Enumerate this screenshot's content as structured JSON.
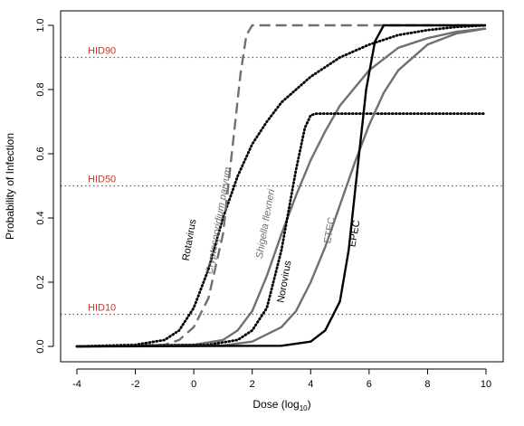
{
  "chart_data": {
    "type": "line",
    "xlabel": "Dose (log",
    "xlabel_sub": "10",
    "xlabel_close": ")",
    "ylabel": "Probability of Infection",
    "xlim": [
      -4,
      10
    ],
    "ylim": [
      0,
      1
    ],
    "x_ticks": [
      -4,
      -2,
      0,
      2,
      4,
      6,
      8,
      10
    ],
    "y_ticks": [
      0.0,
      0.2,
      0.4,
      0.6,
      0.8,
      1.0
    ],
    "y_tick_labels": [
      "0.0",
      "0.2",
      "0.4",
      "0.6",
      "0.8",
      "1.0"
    ],
    "grid": false,
    "reference_lines": [
      {
        "label": "HID90",
        "y": 0.9,
        "color": "#c0392b"
      },
      {
        "label": "HID50",
        "y": 0.5,
        "color": "#c0392b"
      },
      {
        "label": "HID10",
        "y": 0.1,
        "color": "#c0392b"
      }
    ],
    "series": [
      {
        "name": "Rotavirus",
        "color": "#000000",
        "style": "dotted",
        "width": 2.4,
        "x": [
          -4,
          -2,
          -1,
          -0.5,
          0,
          0.5,
          1,
          1.5,
          2,
          2.5,
          3,
          4,
          5,
          6,
          7,
          8,
          9,
          10
        ],
        "y": [
          0.0,
          0.005,
          0.02,
          0.05,
          0.12,
          0.24,
          0.4,
          0.53,
          0.63,
          0.7,
          0.76,
          0.84,
          0.9,
          0.94,
          0.97,
          0.985,
          0.995,
          1.0
        ]
      },
      {
        "name": "Cryptosporidium parvum",
        "color": "#707070",
        "style": "dashed",
        "width": 2.4,
        "x": [
          -4,
          -1,
          -0.5,
          0,
          0.5,
          1,
          1.3,
          1.6,
          1.8,
          2,
          3,
          6,
          10
        ],
        "y": [
          0.0,
          0.005,
          0.02,
          0.06,
          0.15,
          0.35,
          0.6,
          0.85,
          0.97,
          1.0,
          1.0,
          1.0,
          1.0
        ]
      },
      {
        "name": "Shigella flexneri",
        "color": "#707070",
        "style": "solid",
        "width": 2.4,
        "x": [
          -4,
          0,
          1,
          1.5,
          2,
          2.5,
          3,
          3.5,
          4,
          4.5,
          5,
          6,
          7,
          8,
          9,
          10
        ],
        "y": [
          0.0,
          0.005,
          0.02,
          0.05,
          0.11,
          0.22,
          0.35,
          0.47,
          0.58,
          0.67,
          0.75,
          0.86,
          0.93,
          0.96,
          0.98,
          0.99
        ]
      },
      {
        "name": "Norovirus",
        "color": "#000000",
        "style": "dotted",
        "width": 2.4,
        "x": [
          -4,
          0.5,
          1.5,
          2,
          2.5,
          3,
          3.5,
          3.8,
          4,
          4.2,
          5,
          6,
          7,
          8,
          9,
          10
        ],
        "y": [
          0.0,
          0.005,
          0.02,
          0.05,
          0.12,
          0.3,
          0.55,
          0.68,
          0.72,
          0.725,
          0.725,
          0.725,
          0.725,
          0.725,
          0.725,
          0.725
        ]
      },
      {
        "name": "ETEC",
        "color": "#707070",
        "style": "solid",
        "width": 2.4,
        "x": [
          -4,
          1,
          2,
          3,
          3.5,
          4,
          4.5,
          5,
          5.5,
          6,
          6.5,
          7,
          8,
          9,
          10
        ],
        "y": [
          0.0,
          0.003,
          0.015,
          0.06,
          0.11,
          0.2,
          0.31,
          0.44,
          0.57,
          0.69,
          0.79,
          0.86,
          0.94,
          0.975,
          0.99
        ]
      },
      {
        "name": "EPEC",
        "color": "#000000",
        "style": "solid",
        "width": 2.4,
        "x": [
          -4,
          3,
          4,
          4.5,
          5,
          5.3,
          5.6,
          5.9,
          6.2,
          6.5,
          7,
          8,
          10
        ],
        "y": [
          0.0,
          0.002,
          0.015,
          0.05,
          0.14,
          0.3,
          0.55,
          0.8,
          0.95,
          1.0,
          1.0,
          1.0,
          1.0
        ]
      }
    ],
    "annotations": [
      {
        "text": "Rotavirus",
        "x": -0.05,
        "y": 0.33,
        "color": "#000000",
        "italic": false
      },
      {
        "text": "Cryptosporidium parvum",
        "x": 0.95,
        "y": 0.39,
        "color": "#707070",
        "italic": true
      },
      {
        "text": "Shigella flexneri",
        "x": 2.55,
        "y": 0.38,
        "color": "#707070",
        "italic": true
      },
      {
        "text": "Norovirus",
        "x": 3.2,
        "y": 0.2,
        "color": "#000000",
        "italic": false
      },
      {
        "text": "ETEC",
        "x": 4.75,
        "y": 0.36,
        "color": "#707070",
        "italic": false
      },
      {
        "text": "EPEC",
        "x": 5.6,
        "y": 0.35,
        "color": "#000000",
        "italic": false
      }
    ]
  }
}
